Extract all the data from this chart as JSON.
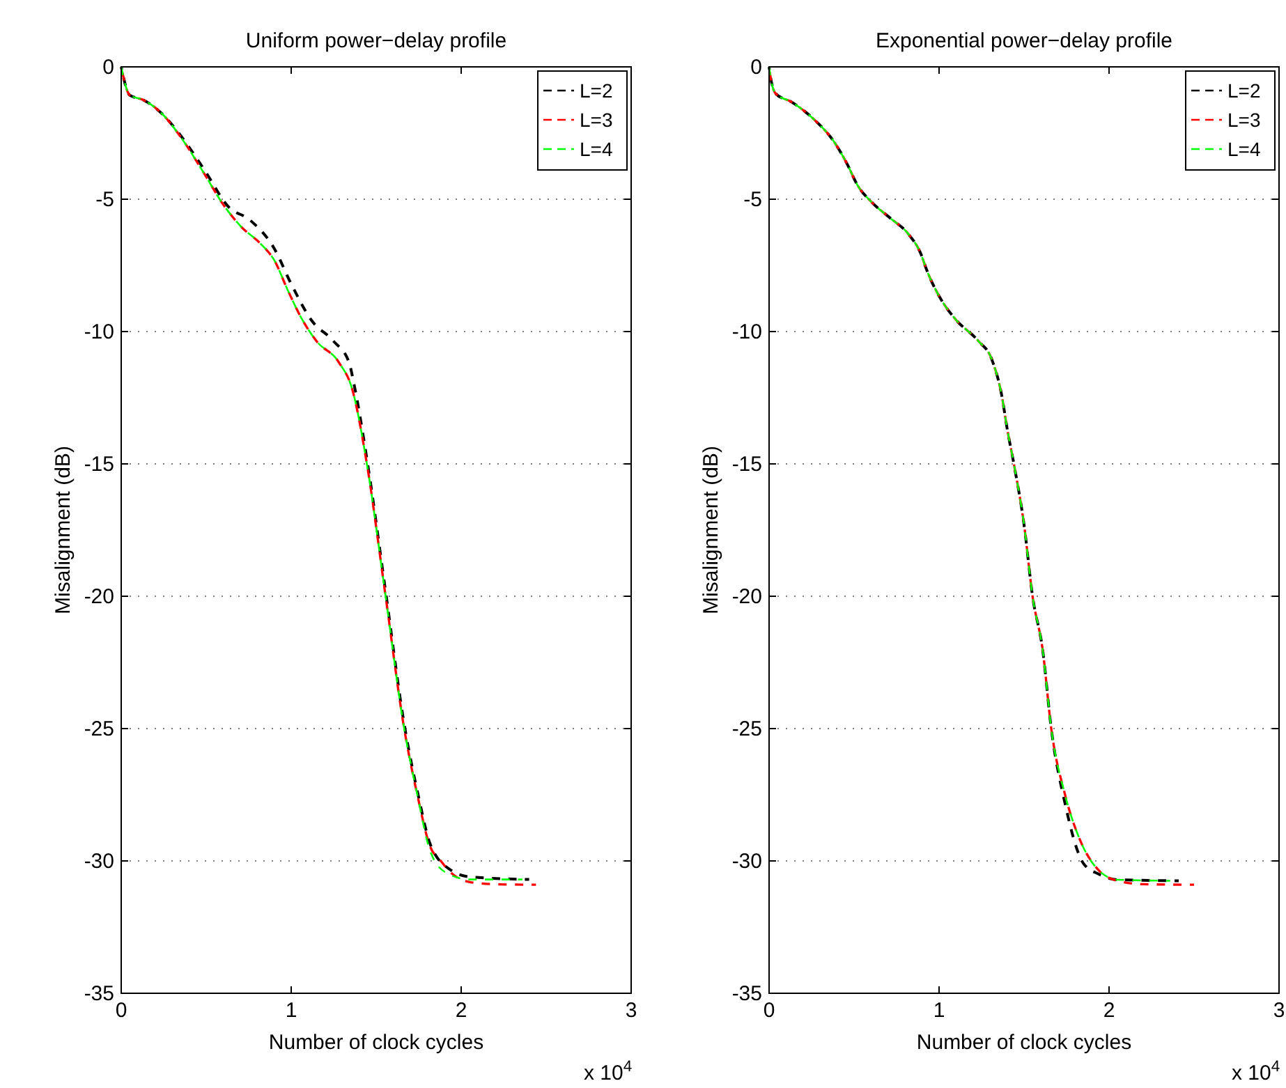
{
  "chart_data": [
    {
      "type": "line",
      "title": "Uniform power−delay profile",
      "xlabel": "Number of clock cycles",
      "ylabel": "Misalignment (dB)",
      "annotations": [
        "x 10$^{4}$"
      ],
      "xlim": [
        0,
        3
      ],
      "xticks": [
        0,
        1,
        2,
        3
      ],
      "ylim": [
        -35,
        0
      ],
      "yticks": [
        -35,
        -30,
        -25,
        -20,
        -15,
        -10,
        -5,
        0
      ],
      "grid": "y",
      "legend": "top right",
      "line_style": "dashed",
      "series": [
        {
          "name": "L=2",
          "color": "#000000",
          "x": [
            0,
            0.05,
            0.13,
            0.24,
            0.35,
            0.49,
            0.63,
            0.76,
            0.9,
            1.0,
            1.12,
            1.25,
            1.34,
            1.37,
            1.445,
            1.555,
            1.664,
            1.75,
            1.82,
            1.94,
            2.05,
            2.4
          ],
          "values": [
            0,
            -1.07,
            -1.25,
            -1.77,
            -2.6,
            -3.9,
            -5.28,
            -5.8,
            -6.86,
            -8.2,
            -9.58,
            -10.37,
            -11.16,
            -12.0,
            -14.8,
            -19.8,
            -24.8,
            -27.6,
            -29.4,
            -30.35,
            -30.6,
            -30.7
          ]
        },
        {
          "name": "L=3",
          "color": "#ff0000",
          "x": [
            0,
            0.05,
            0.13,
            0.24,
            0.35,
            0.49,
            0.6,
            0.71,
            0.82,
            0.9,
            0.98,
            1.06,
            1.15,
            1.28,
            1.36,
            1.445,
            1.555,
            1.664,
            1.746,
            1.814,
            1.88,
            1.95,
            2.05,
            2.2,
            2.44
          ],
          "values": [
            0,
            -1.07,
            -1.25,
            -1.77,
            -2.65,
            -4.05,
            -5.2,
            -6.07,
            -6.68,
            -7.3,
            -8.44,
            -9.49,
            -10.37,
            -11.16,
            -12.2,
            -14.99,
            -19.98,
            -24.97,
            -27.62,
            -29.4,
            -30.0,
            -30.5,
            -30.8,
            -30.88,
            -30.9
          ]
        },
        {
          "name": "L=4",
          "color": "#00ff00",
          "x": [
            0,
            0.05,
            0.13,
            0.24,
            0.35,
            0.49,
            0.6,
            0.71,
            0.82,
            0.9,
            0.98,
            1.06,
            1.15,
            1.28,
            1.36,
            1.445,
            1.555,
            1.664,
            1.746,
            1.814,
            1.91,
            2.05,
            2.36
          ],
          "values": [
            0,
            -1.07,
            -1.25,
            -1.77,
            -2.65,
            -4.05,
            -5.2,
            -6.07,
            -6.68,
            -7.3,
            -8.44,
            -9.49,
            -10.37,
            -11.16,
            -12.2,
            -14.99,
            -19.98,
            -24.97,
            -27.62,
            -29.56,
            -30.44,
            -30.7,
            -30.7
          ]
        }
      ]
    },
    {
      "type": "line",
      "title": "Exponential power−delay profile",
      "xlabel": "Number of clock cycles",
      "ylabel": "Misalignment (dB)",
      "annotations": [
        "x 10$^{4}$"
      ],
      "xlim": [
        0,
        3
      ],
      "xticks": [
        0,
        1,
        2,
        3
      ],
      "ylim": [
        -35,
        0
      ],
      "yticks": [
        -35,
        -30,
        -25,
        -20,
        -15,
        -10,
        -5,
        0
      ],
      "grid": "y",
      "legend": "top right",
      "line_style": "dashed",
      "series": [
        {
          "name": "L=2",
          "color": "#000000",
          "x": [
            0,
            0.01,
            0.04,
            0.13,
            0.27,
            0.38,
            0.46,
            0.52,
            0.6,
            0.71,
            0.82,
            0.89,
            0.93,
            1.01,
            1.1,
            1.23,
            1.31,
            1.37,
            1.4,
            1.44,
            1.5,
            1.55,
            1.61,
            1.66,
            1.74,
            1.85,
            1.94,
            2.05,
            2.41
          ],
          "values": [
            0,
            -0.44,
            -1.02,
            -1.32,
            -2.02,
            -2.81,
            -3.68,
            -4.47,
            -5.09,
            -5.7,
            -6.32,
            -7.02,
            -7.72,
            -8.77,
            -9.56,
            -10.35,
            -11.05,
            -12.46,
            -13.65,
            -15.0,
            -17.3,
            -20.0,
            -22.05,
            -25.0,
            -27.8,
            -30.1,
            -30.5,
            -30.71,
            -30.75
          ]
        },
        {
          "name": "L=3",
          "color": "#ff0000",
          "x": [
            0,
            0.01,
            0.04,
            0.13,
            0.27,
            0.38,
            0.46,
            0.52,
            0.6,
            0.71,
            0.82,
            0.89,
            0.93,
            1.01,
            1.1,
            1.23,
            1.31,
            1.37,
            1.4,
            1.44,
            1.5,
            1.55,
            1.61,
            1.66,
            1.74,
            1.83,
            1.94,
            2.05,
            2.2,
            2.5
          ],
          "values": [
            0,
            -0.44,
            -1.02,
            -1.32,
            -2.02,
            -2.81,
            -3.68,
            -4.47,
            -5.09,
            -5.7,
            -6.32,
            -7.02,
            -7.72,
            -8.77,
            -9.56,
            -10.35,
            -11.05,
            -12.46,
            -13.65,
            -15.0,
            -17.3,
            -20.0,
            -22.05,
            -25.0,
            -27.47,
            -29.22,
            -30.36,
            -30.75,
            -30.88,
            -30.9
          ]
        },
        {
          "name": "L=4",
          "color": "#00ff00",
          "x": [
            0,
            0.01,
            0.04,
            0.13,
            0.27,
            0.38,
            0.46,
            0.52,
            0.6,
            0.71,
            0.82,
            0.89,
            0.93,
            1.01,
            1.1,
            1.23,
            1.31,
            1.37,
            1.4,
            1.44,
            1.5,
            1.55,
            1.61,
            1.66,
            1.74,
            1.83,
            1.94,
            2.05,
            2.36
          ],
          "values": [
            0,
            -0.44,
            -1.02,
            -1.32,
            -2.02,
            -2.81,
            -3.68,
            -4.47,
            -5.09,
            -5.7,
            -6.32,
            -7.02,
            -7.72,
            -8.77,
            -9.56,
            -10.35,
            -11.05,
            -12.46,
            -13.65,
            -15.0,
            -17.3,
            -20.0,
            -22.05,
            -25.0,
            -27.47,
            -29.22,
            -30.36,
            -30.71,
            -30.75
          ]
        }
      ]
    }
  ]
}
